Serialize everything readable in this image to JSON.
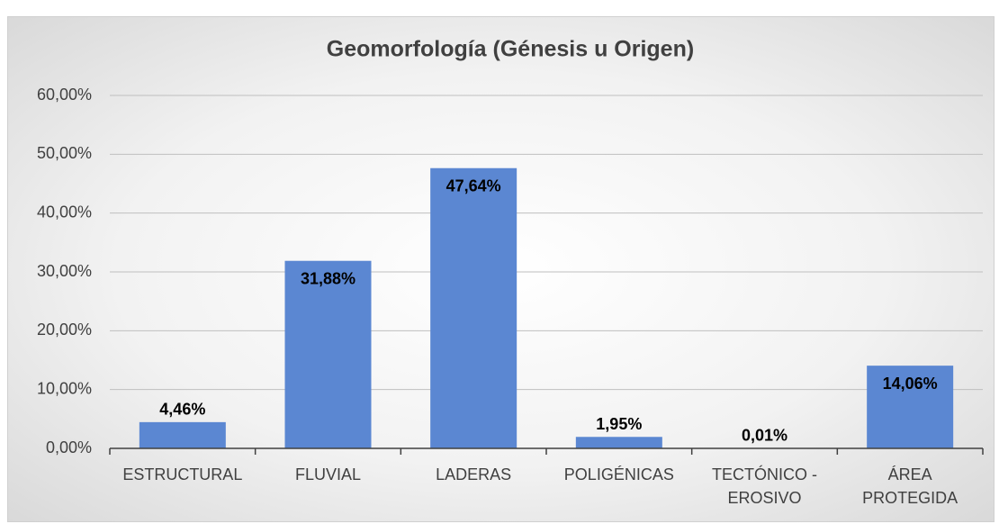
{
  "chart_data": {
    "type": "bar",
    "title": "Geomorfología (Génesis u Origen)",
    "categories": [
      "ESTRUCTURAL",
      "FLUVIAL",
      "LADERAS",
      "POLIGÉNICAS",
      "TECTÓNICO - EROSIVO",
      "ÁREA PROTEGIDA"
    ],
    "values": [
      4.46,
      31.88,
      47.64,
      1.95,
      0.01,
      14.06
    ],
    "value_labels": [
      "4,46%",
      "31,88%",
      "47,64%",
      "1,95%",
      "0,01%",
      "14,06%"
    ],
    "color": "#5b87d2",
    "ylim": [
      0,
      60
    ],
    "yticks": [
      {
        "value": 0,
        "label": "0,00%"
      },
      {
        "value": 10,
        "label": "10,00%"
      },
      {
        "value": 20,
        "label": "20,00%"
      },
      {
        "value": 30,
        "label": "30,00%"
      },
      {
        "value": 40,
        "label": "40,00%"
      },
      {
        "value": 50,
        "label": "50,00%"
      },
      {
        "value": 60,
        "label": "60,00%"
      }
    ],
    "grid": true
  }
}
